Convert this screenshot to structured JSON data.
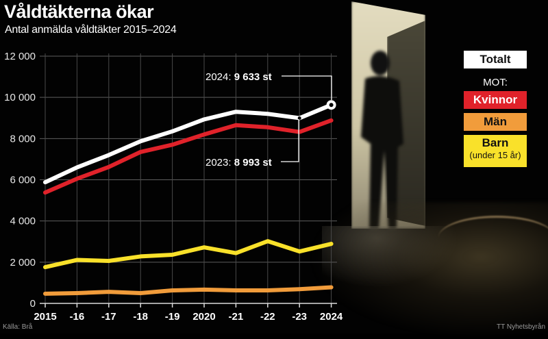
{
  "header": {
    "title": "Våldtäkterna ökar",
    "subtitle": "Antal anmälda våldtäkter 2015–2024"
  },
  "legend": {
    "total": "Totalt",
    "mot_label": "MOT:",
    "kvinnor": "Kvinnor",
    "man": "Män",
    "barn": "Barn",
    "barn_sub": "(under 15 år)"
  },
  "annotations": {
    "a2024_year": "2024: ",
    "a2024_value": "9 633 st",
    "a2023_year": "2023: ",
    "a2023_value": "8 993 st"
  },
  "footer": {
    "source": "Källa: Brå",
    "credit": "TT Nyhetsbyrån"
  },
  "colors": {
    "total": "#ffffff",
    "kvinnor": "#e0222a",
    "man": "#f19c3b",
    "barn": "#f9e12a",
    "grid": "#6a6a6a",
    "background": "#000000"
  },
  "chart_data": {
    "type": "line",
    "title": "Våldtäkterna ökar",
    "subtitle": "Antal anmälda våldtäkter 2015–2024",
    "xlabel": "",
    "ylabel": "",
    "categories": [
      "2015",
      "-16",
      "-17",
      "-18",
      "-19",
      "2020",
      "-21",
      "-22",
      "-23",
      "2024"
    ],
    "yticks": [
      "0",
      "2 000",
      "4 000",
      "6 000",
      "8 000",
      "10 000",
      "12 000"
    ],
    "ylim": [
      0,
      12000
    ],
    "grid": true,
    "legend_position": "right",
    "series": [
      {
        "name": "Totalt",
        "color": "#ffffff",
        "values": [
          5880,
          6600,
          7200,
          7870,
          8350,
          8930,
          9300,
          9200,
          8993,
          9633
        ]
      },
      {
        "name": "Kvinnor",
        "color": "#e0222a",
        "values": [
          5380,
          6050,
          6620,
          7350,
          7700,
          8200,
          8650,
          8550,
          8320,
          8880
        ]
      },
      {
        "name": "Män",
        "color": "#f19c3b",
        "values": [
          470,
          500,
          560,
          500,
          630,
          670,
          630,
          630,
          690,
          780
        ]
      },
      {
        "name": "Barn (under 15 år)",
        "color": "#f9e12a",
        "values": [
          1760,
          2110,
          2060,
          2280,
          2360,
          2720,
          2440,
          3020,
          2520,
          2890
        ]
      }
    ],
    "annotations": [
      {
        "x": "2024",
        "text": "2024: 9 633 st"
      },
      {
        "x": "-23",
        "text": "2023: 8 993 st"
      }
    ],
    "source": "Källa: Brå",
    "credit": "TT Nyhetsbyrån"
  }
}
